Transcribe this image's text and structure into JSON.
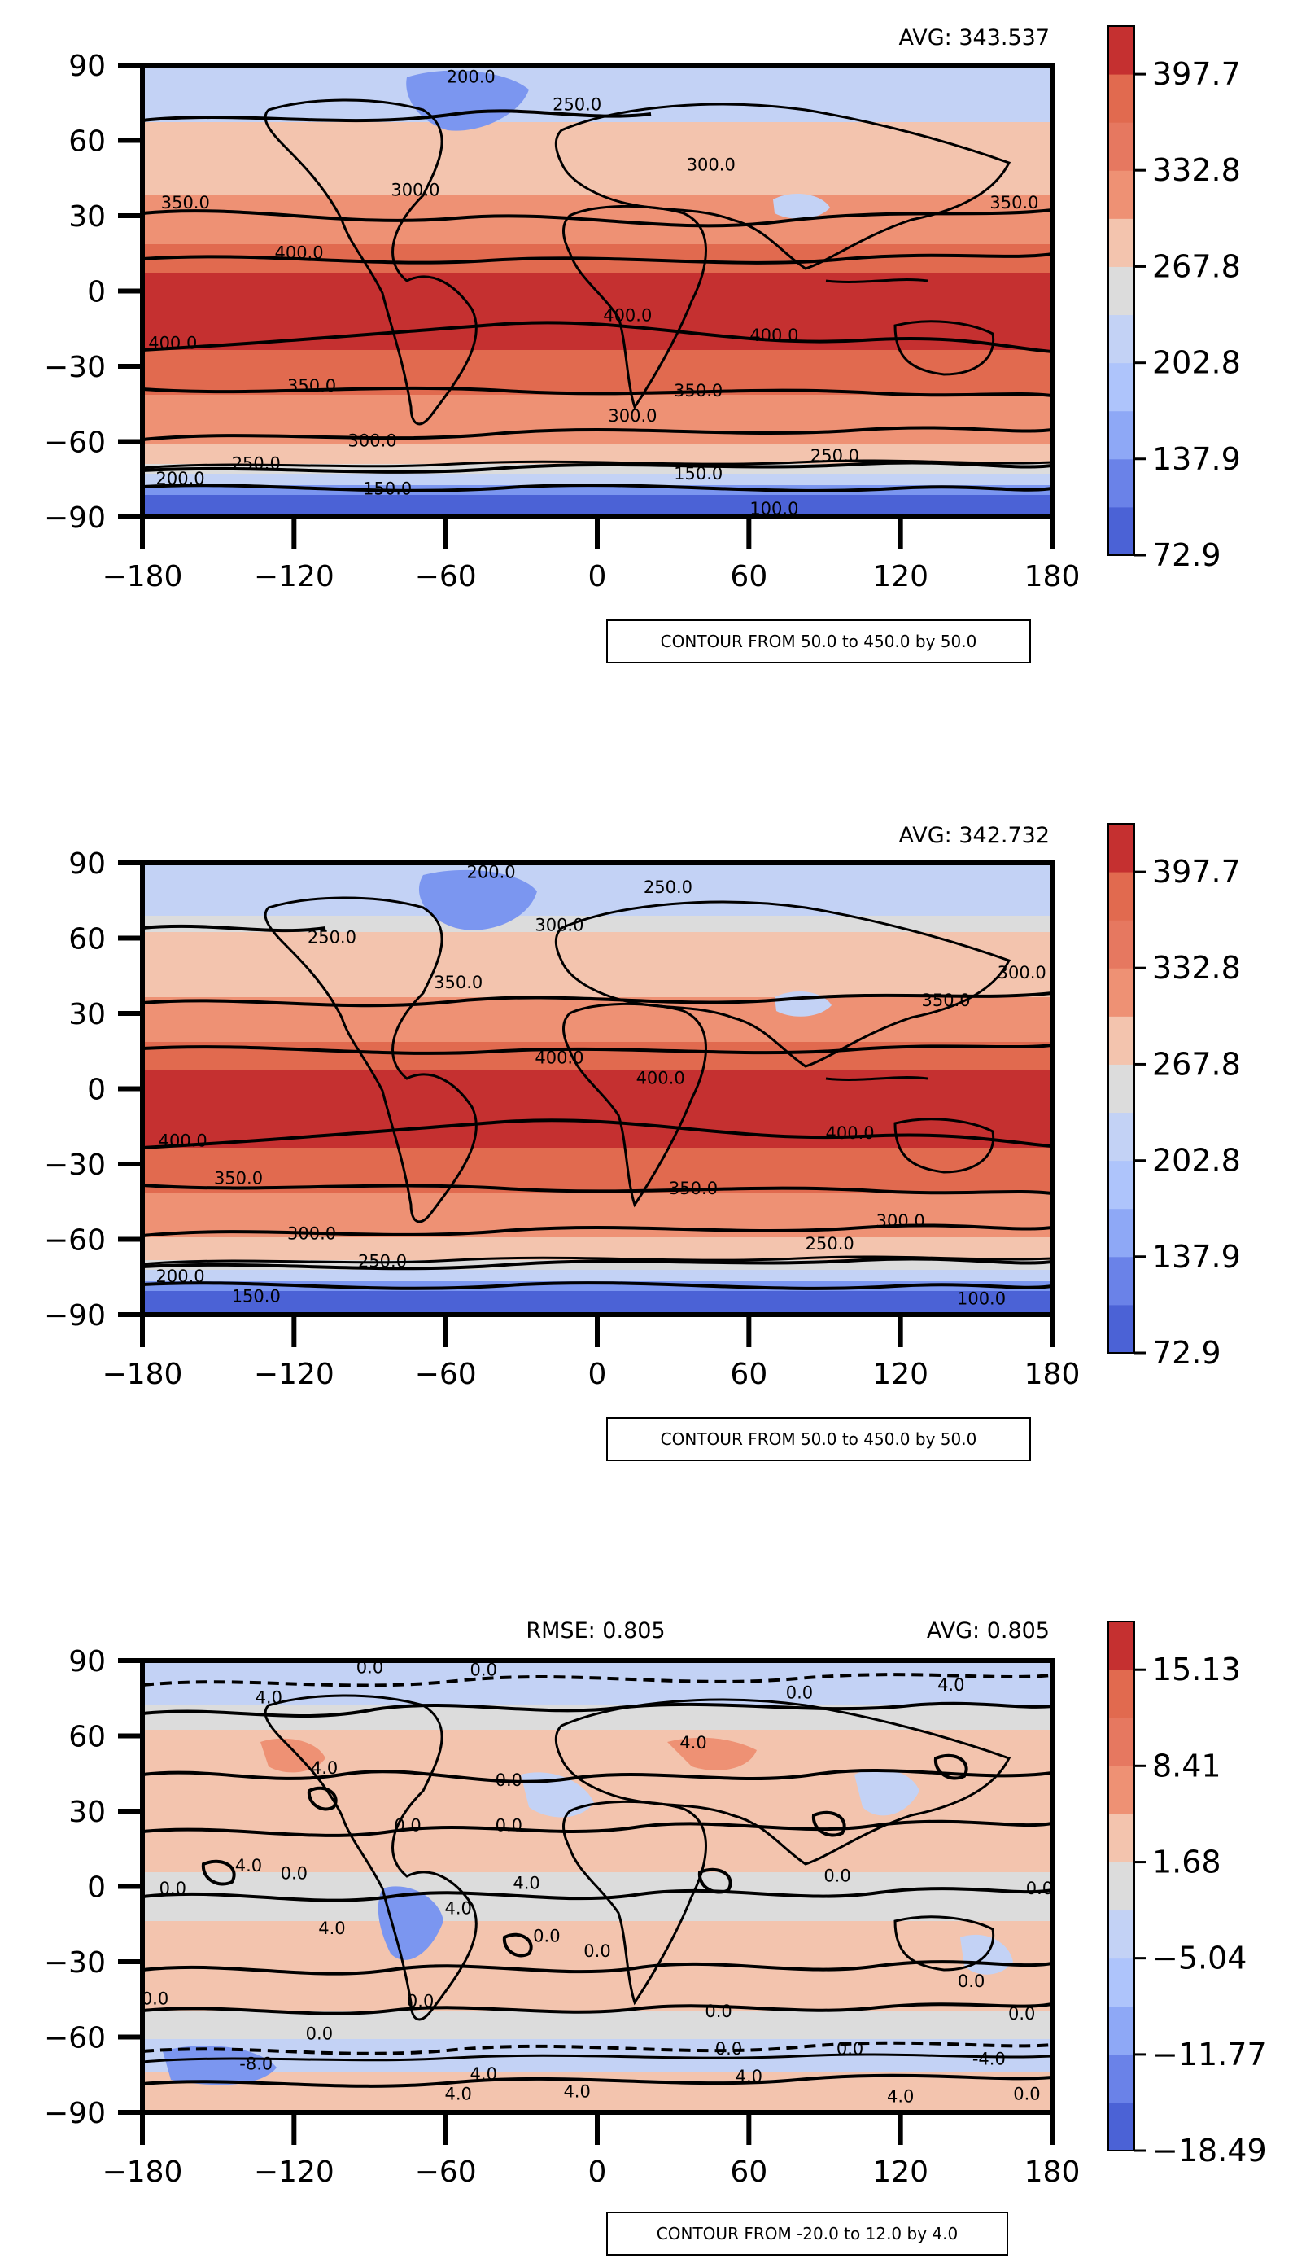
{
  "colors": {
    "blue_dark": "#4b62d6",
    "blue_mid": "#7b96f0",
    "blue_light": "#c3d2f5",
    "gray": "#dcdcdc",
    "peach": "#f3c4ae",
    "salmon": "#ee9174",
    "orange": "#e16a4f",
    "red": "#c53030",
    "frame": "#000000"
  },
  "chart_data": [
    {
      "type": "heatmap",
      "title": "",
      "stats": {
        "avg_label": "AVG: 343.537"
      },
      "xlim": [
        -180,
        180
      ],
      "ylim": [
        -90,
        90
      ],
      "xticks": [
        "−180",
        "−120",
        "−60",
        "0",
        "60",
        "120",
        "180"
      ],
      "yticks": [
        "90",
        "60",
        "30",
        "0",
        "−30",
        "−60",
        "−90"
      ],
      "colorbar": {
        "range": [
          72.9,
          430.2
        ],
        "tick_values": [
          72.9,
          137.9,
          202.8,
          267.8,
          332.8,
          397.7
        ],
        "tick_labels": [
          "72.9",
          "137.9",
          "202.8",
          "267.8",
          "332.8",
          "397.7"
        ],
        "levels": 11
      },
      "contour_note": "CONTOUR FROM 50.0 to 450.0 by 50.0",
      "contour_labels": [
        {
          "text": "200.0",
          "lon": -50,
          "lat": 83
        },
        {
          "text": "250.0",
          "lon": -8,
          "lat": 72
        },
        {
          "text": "300.0",
          "lon": 45,
          "lat": 48
        },
        {
          "text": "300.0",
          "lon": -72,
          "lat": 38
        },
        {
          "text": "350.0",
          "lon": -163,
          "lat": 33
        },
        {
          "text": "350.0",
          "lon": 165,
          "lat": 33
        },
        {
          "text": "400.0",
          "lon": -118,
          "lat": 13
        },
        {
          "text": "400.0",
          "lon": 12,
          "lat": -12
        },
        {
          "text": "400.0",
          "lon": 70,
          "lat": -20
        },
        {
          "text": "400.0",
          "lon": -168,
          "lat": -23
        },
        {
          "text": "350.0",
          "lon": -113,
          "lat": -40
        },
        {
          "text": "350.0",
          "lon": 40,
          "lat": -42
        },
        {
          "text": "300.0",
          "lon": 14,
          "lat": -52
        },
        {
          "text": "300.0",
          "lon": -89,
          "lat": -62
        },
        {
          "text": "250.0",
          "lon": -135,
          "lat": -71
        },
        {
          "text": "250.0",
          "lon": 94,
          "lat": -68
        },
        {
          "text": "200.0",
          "lon": -165,
          "lat": -77
        },
        {
          "text": "150.0",
          "lon": -83,
          "lat": -81
        },
        {
          "text": "150.0",
          "lon": 40,
          "lat": -75
        },
        {
          "text": "100.0",
          "lon": 70,
          "lat": -89
        }
      ]
    },
    {
      "type": "heatmap",
      "title": "",
      "stats": {
        "avg_label": "AVG: 342.732"
      },
      "xlim": [
        -180,
        180
      ],
      "ylim": [
        -90,
        90
      ],
      "xticks": [
        "−180",
        "−120",
        "−60",
        "0",
        "60",
        "120",
        "180"
      ],
      "yticks": [
        "90",
        "60",
        "30",
        "0",
        "−30",
        "−60",
        "−90"
      ],
      "colorbar": {
        "range": [
          72.9,
          430.2
        ],
        "tick_values": [
          72.9,
          137.9,
          202.8,
          267.8,
          332.8,
          397.7
        ],
        "tick_labels": [
          "72.9",
          "137.9",
          "202.8",
          "267.8",
          "332.8",
          "397.7"
        ],
        "levels": 11
      },
      "contour_note": "CONTOUR FROM 50.0 to 450.0 by 50.0",
      "contour_labels": [
        {
          "text": "200.0",
          "lon": -42,
          "lat": 84
        },
        {
          "text": "250.0",
          "lon": 28,
          "lat": 78
        },
        {
          "text": "300.0",
          "lon": -15,
          "lat": 63
        },
        {
          "text": "250.0",
          "lon": -105,
          "lat": 58
        },
        {
          "text": "350.0",
          "lon": -55,
          "lat": 40
        },
        {
          "text": "300.0",
          "lon": 168,
          "lat": 44
        },
        {
          "text": "350.0",
          "lon": 138,
          "lat": 33
        },
        {
          "text": "400.0",
          "lon": -15,
          "lat": 10
        },
        {
          "text": "400.0",
          "lon": 25,
          "lat": 2
        },
        {
          "text": "400.0",
          "lon": 100,
          "lat": -20
        },
        {
          "text": "400.0",
          "lon": -164,
          "lat": -23
        },
        {
          "text": "350.0",
          "lon": -142,
          "lat": -38
        },
        {
          "text": "350.0",
          "lon": 38,
          "lat": -42
        },
        {
          "text": "300.0",
          "lon": -113,
          "lat": -60
        },
        {
          "text": "300.0",
          "lon": 120,
          "lat": -55
        },
        {
          "text": "250.0",
          "lon": -85,
          "lat": -71
        },
        {
          "text": "250.0",
          "lon": 92,
          "lat": -64
        },
        {
          "text": "200.0",
          "lon": -165,
          "lat": -77
        },
        {
          "text": "150.0",
          "lon": -135,
          "lat": -85
        },
        {
          "text": "100.0",
          "lon": 152,
          "lat": -86
        }
      ]
    },
    {
      "type": "heatmap",
      "title": "",
      "stats": {
        "rmse_label": "RMSE: 0.805",
        "avg_label": "AVG: 0.805"
      },
      "xlim": [
        -180,
        180
      ],
      "ylim": [
        -90,
        90
      ],
      "xticks": [
        "−180",
        "−120",
        "−60",
        "0",
        "60",
        "120",
        "180"
      ],
      "yticks": [
        "90",
        "60",
        "30",
        "0",
        "−30",
        "−60",
        "−90"
      ],
      "colorbar": {
        "range": [
          -18.49,
          18.5
        ],
        "tick_values": [
          -18.49,
          -11.77,
          -5.04,
          1.68,
          8.41,
          15.13
        ],
        "tick_labels": [
          "−18.49",
          "−11.77",
          "−5.04",
          "1.68",
          "8.41",
          "15.13"
        ],
        "levels": 11
      },
      "contour_note": "CONTOUR FROM -20.0 to 12.0 by 4.0",
      "contour_labels": [
        {
          "text": "0.0",
          "lon": -90,
          "lat": 85
        },
        {
          "text": "0.0",
          "lon": -45,
          "lat": 84
        },
        {
          "text": "4.0",
          "lon": 140,
          "lat": 78
        },
        {
          "text": "0.0",
          "lon": 80,
          "lat": 75
        },
        {
          "text": "4.0",
          "lon": -130,
          "lat": 73
        },
        {
          "text": "4.0",
          "lon": -108,
          "lat": 45
        },
        {
          "text": "4.0",
          "lon": 38,
          "lat": 55
        },
        {
          "text": "0.0",
          "lon": -35,
          "lat": 40
        },
        {
          "text": "0.0",
          "lon": -75,
          "lat": 22
        },
        {
          "text": "0.0",
          "lon": -35,
          "lat": 22
        },
        {
          "text": "4.0",
          "lon": -138,
          "lat": 6
        },
        {
          "text": "0.0",
          "lon": -120,
          "lat": 3
        },
        {
          "text": "0.0",
          "lon": -168,
          "lat": -3
        },
        {
          "text": "0.0",
          "lon": 95,
          "lat": 2
        },
        {
          "text": "0.0",
          "lon": 175,
          "lat": -3
        },
        {
          "text": "4.0",
          "lon": -28,
          "lat": -1
        },
        {
          "text": "4.0",
          "lon": -55,
          "lat": -11
        },
        {
          "text": "4.0",
          "lon": -105,
          "lat": -19
        },
        {
          "text": "0.0",
          "lon": -20,
          "lat": -22
        },
        {
          "text": "0.0",
          "lon": 0,
          "lat": -28
        },
        {
          "text": "0.0",
          "lon": 148,
          "lat": -40
        },
        {
          "text": "0.0",
          "lon": -175,
          "lat": -47
        },
        {
          "text": "0.0",
          "lon": -70,
          "lat": -48
        },
        {
          "text": "0.0",
          "lon": 48,
          "lat": -52
        },
        {
          "text": "0.0",
          "lon": 168,
          "lat": -53
        },
        {
          "text": "0.0",
          "lon": -110,
          "lat": -61
        },
        {
          "text": "0.0",
          "lon": 52,
          "lat": -67
        },
        {
          "text": "0.0",
          "lon": 100,
          "lat": -67
        },
        {
          "text": "-8.0",
          "lon": -135,
          "lat": -73
        },
        {
          "text": "-4.0",
          "lon": 155,
          "lat": -71
        },
        {
          "text": "4.0",
          "lon": -45,
          "lat": -77
        },
        {
          "text": "4.0",
          "lon": 60,
          "lat": -78
        },
        {
          "text": "4.0",
          "lon": -8,
          "lat": -84
        },
        {
          "text": "4.0",
          "lon": -55,
          "lat": -85
        },
        {
          "text": "4.0",
          "lon": 120,
          "lat": -86
        },
        {
          "text": "0.0",
          "lon": 170,
          "lat": -85
        }
      ]
    }
  ]
}
